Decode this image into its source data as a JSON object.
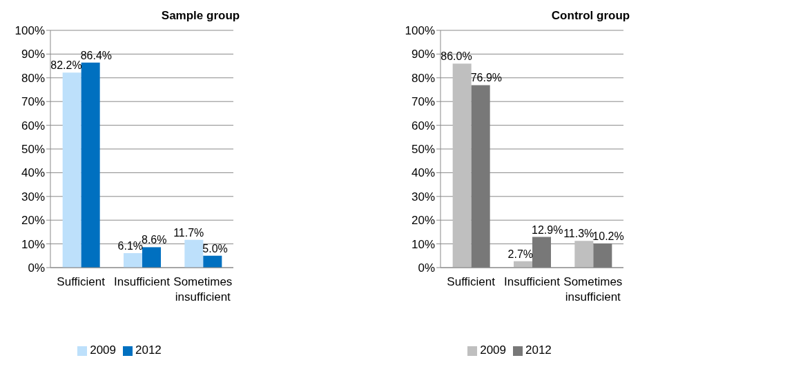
{
  "chart_data": [
    {
      "type": "bar",
      "title": "Sample group",
      "categories": [
        "Sufficient",
        "Insufficient",
        "Sometimes insufficient"
      ],
      "series": [
        {
          "name": "2009",
          "color": "#bde0fb",
          "values": [
            82.2,
            6.1,
            11.7
          ],
          "value_labels": [
            "82.2%",
            "6.1%",
            "11.7%"
          ]
        },
        {
          "name": "2012",
          "color": "#0070c0",
          "values": [
            86.4,
            8.6,
            5.0
          ],
          "value_labels": [
            "86.4%",
            "8.6%",
            "5.0%"
          ]
        }
      ],
      "ylim": [
        0,
        100
      ],
      "yticks": [
        {
          "value": 0,
          "label": "0%"
        },
        {
          "value": 10,
          "label": "10%"
        },
        {
          "value": 20,
          "label": "20%"
        },
        {
          "value": 30,
          "label": "30%"
        },
        {
          "value": 40,
          "label": "40%"
        },
        {
          "value": 50,
          "label": "50%"
        },
        {
          "value": 60,
          "label": "60%"
        },
        {
          "value": 70,
          "label": "70%"
        },
        {
          "value": 80,
          "label": "80%"
        },
        {
          "value": 90,
          "label": "90%"
        },
        {
          "value": 100,
          "label": "100%"
        }
      ],
      "grid": "y",
      "legend": "bottom"
    },
    {
      "type": "bar",
      "title": "Control group",
      "categories": [
        "Sufficient",
        "Insufficient",
        "Sometimes insufficient"
      ],
      "series": [
        {
          "name": "2009",
          "color": "#bfbfbf",
          "values": [
            86.0,
            2.7,
            11.3
          ],
          "value_labels": [
            "86.0%",
            "2.7%",
            "11.3%"
          ]
        },
        {
          "name": "2012",
          "color": "#787878",
          "values": [
            76.9,
            12.9,
            10.2
          ],
          "value_labels": [
            "76.9%",
            "12.9%",
            "10.2%"
          ]
        }
      ],
      "ylim": [
        0,
        100
      ],
      "yticks": [
        {
          "value": 0,
          "label": "0%"
        },
        {
          "value": 10,
          "label": "10%"
        },
        {
          "value": 20,
          "label": "20%"
        },
        {
          "value": 30,
          "label": "30%"
        },
        {
          "value": 40,
          "label": "40%"
        },
        {
          "value": 50,
          "label": "50%"
        },
        {
          "value": 60,
          "label": "60%"
        },
        {
          "value": 70,
          "label": "70%"
        },
        {
          "value": 80,
          "label": "80%"
        },
        {
          "value": 90,
          "label": "90%"
        },
        {
          "value": 100,
          "label": "100%"
        }
      ],
      "grid": "y",
      "legend": "bottom"
    }
  ]
}
